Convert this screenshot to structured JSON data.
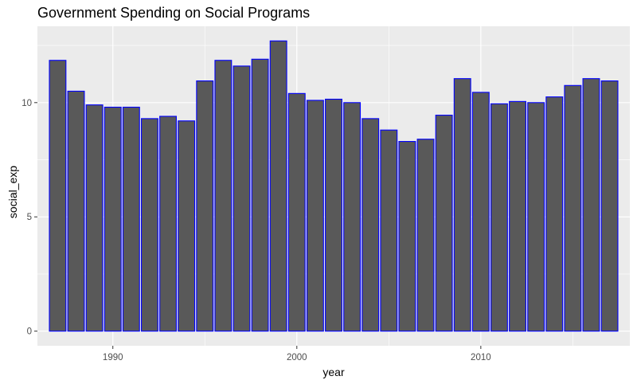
{
  "chart_data": {
    "type": "bar",
    "title": "Government Spending on Social Programs",
    "xlabel": "year",
    "ylabel": "social_exp",
    "x": [
      1987,
      1988,
      1989,
      1990,
      1991,
      1992,
      1993,
      1994,
      1995,
      1996,
      1997,
      1998,
      1999,
      2000,
      2001,
      2002,
      2003,
      2004,
      2005,
      2006,
      2007,
      2008,
      2009,
      2010,
      2011,
      2012,
      2013,
      2014,
      2015,
      2016,
      2017
    ],
    "values": [
      11.85,
      10.5,
      9.9,
      9.8,
      9.8,
      9.3,
      9.4,
      9.2,
      10.95,
      11.85,
      11.6,
      11.9,
      12.7,
      10.4,
      10.1,
      10.15,
      10.0,
      9.3,
      8.8,
      8.3,
      8.4,
      9.45,
      11.05,
      10.45,
      9.95,
      10.05,
      10.0,
      10.25,
      10.75,
      11.05,
      10.95
    ],
    "xlim": [
      1985.9,
      2018.1
    ],
    "ylim": [
      -0.64,
      13.34
    ],
    "xticks": [
      1990,
      2000,
      2010
    ],
    "yticks": [
      0,
      5,
      10
    ],
    "grid": true,
    "bar_fill": "#595959",
    "bar_outline": "#0000ff",
    "panel_background": "#ebebeb",
    "gridline_color": "#ffffff"
  }
}
